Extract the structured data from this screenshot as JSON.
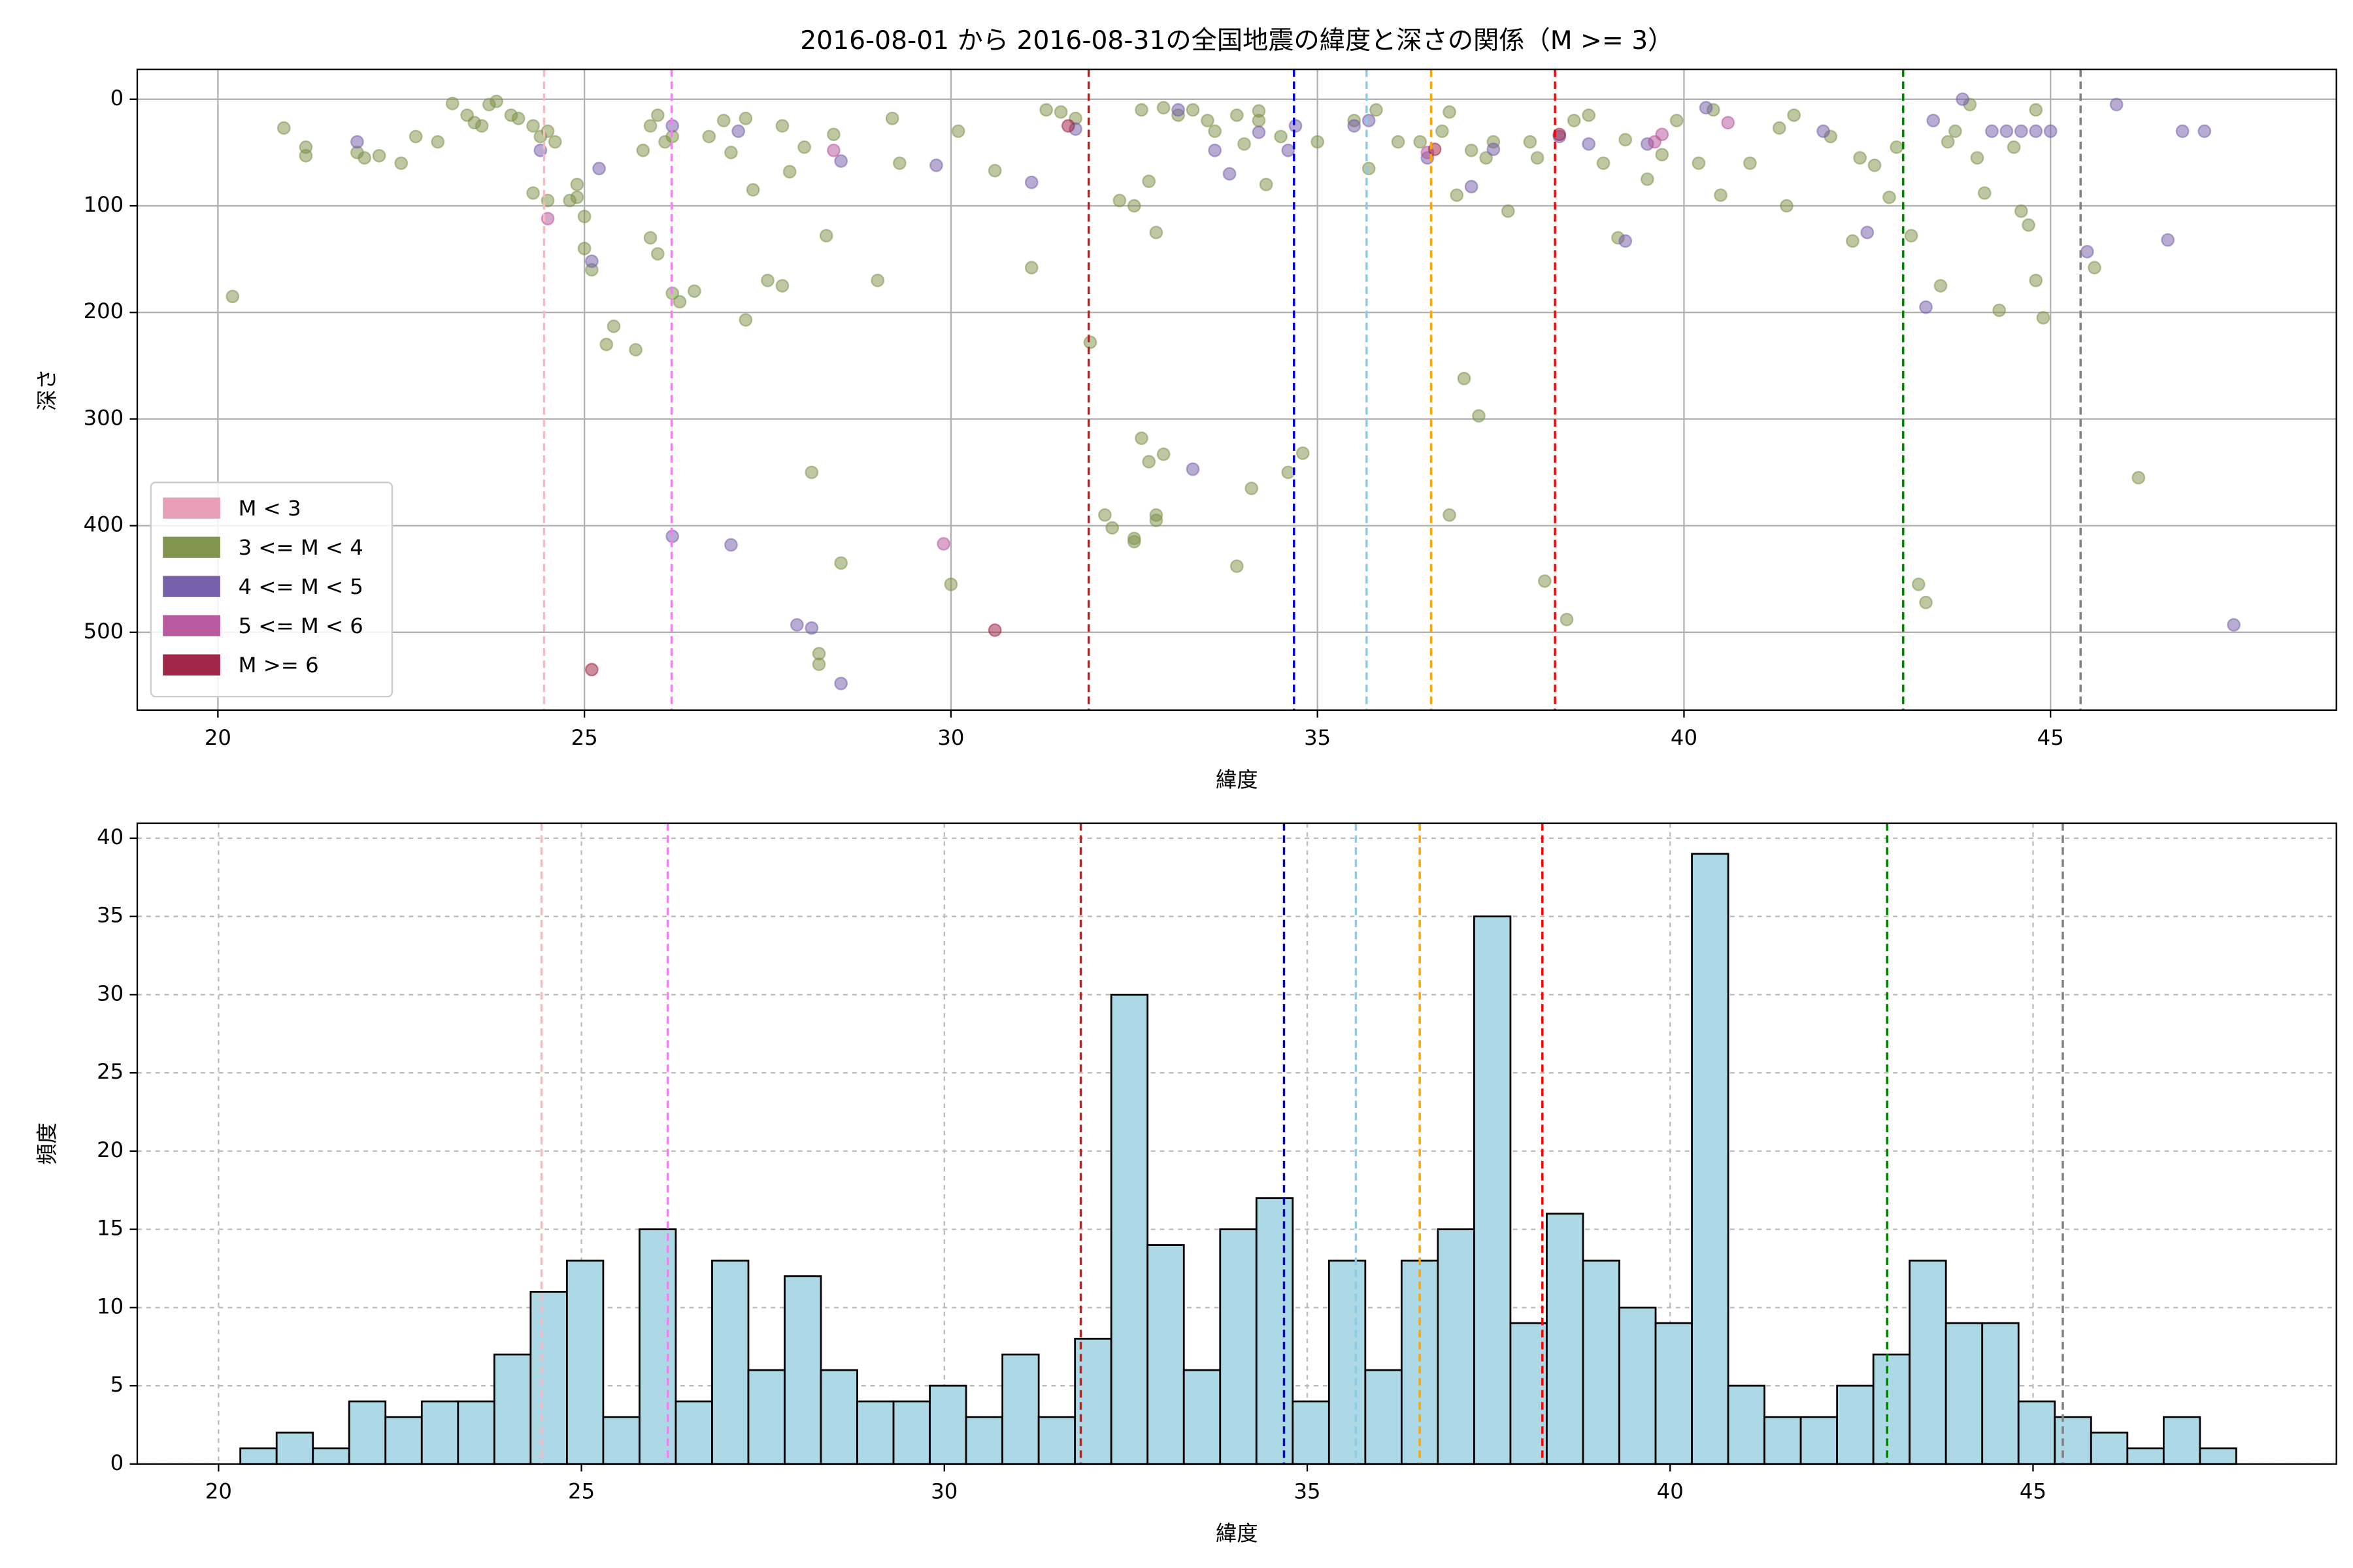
{
  "reference_lines": [
    {
      "x": 24.45,
      "color": "#ffb6c1"
    },
    {
      "x": 26.19,
      "color": "#ee82ee"
    },
    {
      "x": 31.88,
      "color": "#a52a2a"
    },
    {
      "x": 34.68,
      "color": "#0000cd"
    },
    {
      "x": 35.67,
      "color": "#87ceeb"
    },
    {
      "x": 36.55,
      "color": "#ffa500"
    },
    {
      "x": 38.24,
      "color": "#ff0000"
    },
    {
      "x": 42.99,
      "color": "#008000"
    },
    {
      "x": 45.41,
      "color": "#808080"
    }
  ],
  "chart_data": [
    {
      "type": "scatter",
      "title": "2016-08-01 から 2016-08-31の全国地震の緯度と深さの関係（M >= 3）",
      "xlabel": "緯度",
      "ylabel": "深さ",
      "xlim": [
        18.9,
        48.9
      ],
      "ylim": [
        573,
        -28
      ],
      "xticks": [
        20,
        25,
        30,
        35,
        40,
        45
      ],
      "yticks": [
        0,
        100,
        200,
        300,
        400,
        500
      ],
      "grid": true,
      "legend": "lower left",
      "alpha": 0.5,
      "series": [
        {
          "name": "M < 3",
          "color": "#e899b4",
          "x": [],
          "values": []
        },
        {
          "name": "3 <= M < 4",
          "color": "#7b8f45",
          "x": [
            20.2,
            20.9,
            21.2,
            21.2,
            21.9,
            22,
            22.2,
            22.5,
            22.7,
            23,
            23.2,
            23.4,
            23.5,
            23.6,
            23.7,
            23.8,
            24,
            24.1,
            24.3,
            24.4,
            24.5,
            24.6,
            24.3,
            24.5,
            24.8,
            24.9,
            24.9,
            25,
            25,
            25.1,
            25.3,
            25.4,
            25.7,
            25.8,
            25.9,
            26,
            26.1,
            26.2,
            25.9,
            26,
            26.2,
            26.3,
            26.5,
            26.7,
            26.9,
            27,
            27.2,
            27.3,
            27.2,
            27.5,
            27.7,
            27.7,
            27.8,
            28,
            28.1,
            28.2,
            28.2,
            28.3,
            28.4,
            28.5,
            29,
            29.2,
            29.3,
            30,
            30.1,
            30.6,
            31.1,
            31.3,
            31.5,
            31.7,
            31.9,
            32.1,
            32.2,
            32.5,
            32.5,
            32.6,
            32.7,
            32.8,
            32.9,
            32.8,
            32.3,
            32.5,
            32.7,
            32.8,
            32.6,
            32.9,
            33.1,
            33.3,
            33.5,
            33.6,
            33.9,
            34.2,
            34,
            34.3,
            34.2,
            34.5,
            34.8,
            34.6,
            34.1,
            33.9,
            35,
            35.5,
            35.7,
            35.8,
            36.1,
            36.4,
            36.7,
            36.8,
            36.9,
            37.1,
            37.3,
            37.4,
            37,
            37.2,
            36.8,
            37.6,
            37.9,
            38,
            38.1,
            38.4,
            38.5,
            38.7,
            38.9,
            39.1,
            39.2,
            39.5,
            39.7,
            39.9,
            40.2,
            40.4,
            40.5,
            40.9,
            41.3,
            41.4,
            41.5,
            42,
            42.3,
            42.4,
            42.6,
            42.8,
            42.9,
            43.1,
            43.2,
            43.3,
            43.5,
            43.6,
            43.7,
            43.9,
            44,
            44.1,
            44.3,
            44.5,
            44.6,
            44.7,
            44.8,
            44.8,
            44.9,
            45.6,
            46.2
          ],
          "values": [
            185,
            27,
            53,
            45,
            50,
            55,
            53,
            60,
            35,
            40,
            4,
            15,
            22,
            25,
            5,
            2,
            15,
            18,
            25,
            35,
            30,
            40,
            88,
            95,
            95,
            92,
            80,
            110,
            140,
            160,
            230,
            213,
            235,
            48,
            25,
            15,
            40,
            35,
            130,
            145,
            182,
            190,
            180,
            35,
            20,
            50,
            18,
            85,
            207,
            170,
            175,
            25,
            68,
            45,
            350,
            520,
            530,
            128,
            33,
            435,
            170,
            18,
            60,
            455,
            30,
            67,
            158,
            10,
            12,
            18,
            228,
            390,
            402,
            415,
            412,
            318,
            340,
            395,
            333,
            390,
            95,
            100,
            77,
            125,
            10,
            8,
            15,
            10,
            20,
            30,
            15,
            20,
            42,
            80,
            11,
            35,
            332,
            350,
            365,
            438,
            40,
            20,
            65,
            10,
            40,
            40,
            30,
            12,
            90,
            48,
            55,
            40,
            262,
            297,
            390,
            105,
            40,
            55,
            452,
            488,
            20,
            15,
            60,
            130,
            38,
            75,
            52,
            20,
            60,
            10,
            90,
            60,
            27,
            100,
            15,
            35,
            133,
            55,
            62,
            92,
            45,
            128,
            455,
            472,
            175,
            40,
            30,
            5,
            55,
            88,
            198,
            45,
            105,
            118,
            10,
            170,
            205,
            158,
            355
          ]
        },
        {
          "name": "4 <= M < 5",
          "color": "#7159a8",
          "x": [
            21.9,
            24.4,
            25.1,
            25.2,
            26.2,
            26.2,
            27,
            27.1,
            27.9,
            28.1,
            28.5,
            28.5,
            29.8,
            31.1,
            31.7,
            33.1,
            33.3,
            33.6,
            33.8,
            34.2,
            34.6,
            34.7,
            35.5,
            35.7,
            36.5,
            37.1,
            37.4,
            38.3,
            38.7,
            39.2,
            39.5,
            40.3,
            41.9,
            42.5,
            43.3,
            43.4,
            43.8,
            44.2,
            44.4,
            44.6,
            44.8,
            45,
            45.5,
            45.9,
            46.6,
            46.8,
            47.1,
            47.5
          ],
          "values": [
            40,
            48,
            152,
            65,
            410,
            25,
            418,
            30,
            493,
            496,
            548,
            58,
            62,
            78,
            28,
            10,
            347,
            48,
            70,
            31,
            48,
            25,
            25,
            20,
            55,
            82,
            47,
            35,
            42,
            133,
            42,
            8,
            30,
            125,
            195,
            20,
            0,
            30,
            30,
            30,
            30,
            30,
            143,
            5,
            132,
            30,
            30,
            493
          ]
        },
        {
          "name": "5 <= M < 6",
          "color": "#b5509a",
          "x": [
            24.5,
            28.4,
            29.9,
            36.5,
            39.6,
            40.6,
            39.7
          ],
          "values": [
            112,
            48,
            417,
            50,
            40,
            22,
            33
          ]
        },
        {
          "name": "M >= 6",
          "color": "#9b1b3d",
          "x": [
            25.1,
            30.6,
            31.6,
            36.6,
            38.3
          ],
          "values": [
            535,
            498,
            25,
            47,
            33
          ]
        }
      ]
    },
    {
      "type": "histogram",
      "xlabel": "緯度",
      "ylabel": "頻度",
      "xlim": [
        18.88,
        49.18
      ],
      "ylim": [
        0,
        40.96
      ],
      "xticks": [
        20,
        25,
        30,
        35,
        40,
        45
      ],
      "yticks": [
        0,
        5,
        10,
        15,
        20,
        25,
        30,
        35,
        40
      ],
      "grid": true,
      "grid_style": "dashed",
      "color": "#add8e6",
      "edgecolor": "#000000",
      "bins": [
        20.3,
        20.8,
        21.3,
        21.8,
        22.3,
        22.8,
        23.3,
        23.8,
        24.3,
        24.8,
        25.3,
        25.8,
        26.3,
        26.8,
        27.3,
        27.8,
        28.3,
        28.8,
        29.3,
        29.8,
        30.3,
        30.8,
        31.3,
        31.8,
        32.3,
        32.8,
        33.3,
        33.8,
        34.3,
        34.8,
        35.3,
        35.8,
        36.3,
        36.8,
        37.3,
        37.8,
        38.3,
        38.8,
        39.3,
        39.8,
        40.3,
        40.8,
        41.3,
        41.8,
        42.3,
        42.8,
        43.3,
        43.8,
        44.3,
        44.8,
        45.3,
        45.8,
        46.3,
        46.8,
        47.3,
        47.8
      ],
      "values": [
        1,
        2,
        1,
        4,
        3,
        4,
        4,
        7,
        11,
        13,
        3,
        15,
        4,
        13,
        6,
        12,
        6,
        4,
        4,
        5,
        3,
        7,
        3,
        8,
        30,
        14,
        6,
        15,
        17,
        4,
        13,
        6,
        13,
        15,
        35,
        9,
        16,
        13,
        10,
        9,
        39,
        5,
        3,
        3,
        5,
        7,
        13,
        9,
        9,
        4,
        3,
        2,
        1,
        3,
        1
      ]
    }
  ]
}
